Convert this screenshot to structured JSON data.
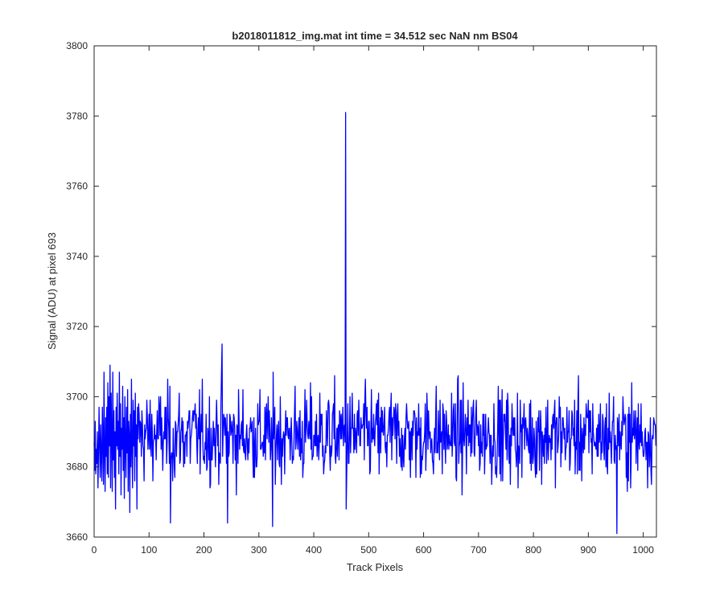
{
  "chart_data": {
    "type": "line",
    "title": "b2018011812_img.mat int time = 34.512 sec  NaN nm BS04",
    "xlabel": "Track Pixels",
    "ylabel": "Signal (ADU) at pixel 693",
    "xlim": [
      0,
      1024
    ],
    "ylim": [
      3660,
      3800
    ],
    "xticks": [
      0,
      100,
      200,
      300,
      400,
      500,
      600,
      700,
      800,
      900,
      1000
    ],
    "yticks": [
      3660,
      3680,
      3700,
      3720,
      3740,
      3760,
      3780,
      3800
    ],
    "grid": false,
    "box": true,
    "series_color": "#0000ff",
    "noise_model": {
      "x_start": 0,
      "x_end": 1023,
      "mean": 3689,
      "std": 9,
      "min_visible": 3661,
      "max_typical": 3715
    },
    "series": [
      {
        "points": [
          [
            0,
            3687
          ],
          [
            1,
            3679
          ],
          [
            2,
            3693
          ],
          [
            3,
            3678
          ],
          [
            4,
            3685
          ],
          [
            5,
            3681
          ],
          [
            6,
            3690
          ],
          [
            7,
            3674
          ],
          [
            8,
            3684
          ],
          [
            9,
            3697
          ],
          [
            10,
            3686
          ],
          [
            11,
            3677
          ],
          [
            12,
            3692
          ],
          [
            13,
            3683
          ],
          [
            14,
            3676
          ],
          [
            15,
            3697
          ],
          [
            16,
            3688
          ],
          [
            17,
            3675
          ],
          [
            18,
            3707
          ],
          [
            19,
            3684
          ],
          [
            20,
            3673
          ],
          [
            21,
            3694
          ],
          [
            22,
            3683
          ],
          [
            23,
            3697
          ],
          [
            24,
            3678
          ],
          [
            25,
            3704
          ],
          [
            26,
            3677
          ],
          [
            27,
            3700
          ],
          [
            28,
            3686
          ],
          [
            29,
            3709
          ],
          [
            30,
            3674
          ],
          [
            31,
            3701
          ],
          [
            32,
            3689
          ],
          [
            33,
            3673
          ],
          [
            34,
            3707
          ],
          [
            35,
            3682
          ],
          [
            36,
            3696
          ],
          [
            37,
            3677
          ],
          [
            38,
            3690
          ],
          [
            39,
            3668
          ],
          [
            40,
            3697
          ],
          [
            41,
            3686
          ],
          [
            42,
            3701
          ],
          [
            43,
            3685
          ],
          [
            44,
            3693
          ],
          [
            45,
            3678
          ],
          [
            46,
            3707
          ],
          [
            47,
            3683
          ],
          [
            48,
            3698
          ],
          [
            49,
            3672
          ],
          [
            50,
            3691
          ],
          [
            51,
            3685
          ],
          [
            52,
            3703
          ],
          [
            53,
            3679
          ],
          [
            54,
            3694
          ],
          [
            55,
            3671
          ],
          [
            56,
            3700
          ],
          [
            57,
            3686
          ],
          [
            58,
            3677
          ],
          [
            59,
            3697
          ],
          [
            60,
            3684
          ],
          [
            61,
            3702
          ],
          [
            62,
            3673
          ],
          [
            63,
            3693
          ],
          [
            64,
            3689
          ],
          [
            65,
            3667
          ],
          [
            66,
            3695
          ],
          [
            67,
            3680
          ],
          [
            68,
            3705
          ],
          [
            69,
            3685
          ],
          [
            70,
            3674
          ],
          [
            71,
            3699
          ],
          [
            72,
            3686
          ],
          [
            73,
            3696
          ],
          [
            74,
            3676
          ],
          [
            75,
            3701
          ],
          [
            76,
            3683
          ],
          [
            77,
            3692
          ],
          [
            78,
            3668
          ],
          [
            79,
            3697
          ],
          [
            80,
            3688
          ]
        ]
      }
    ],
    "spikes": [
      {
        "x": 233,
        "y": 3715
      },
      {
        "x": 458,
        "y": 3781
      },
      {
        "x": 459,
        "y": 3668
      },
      {
        "x": 952,
        "y": 3661
      },
      {
        "x": 325,
        "y": 3663
      },
      {
        "x": 243,
        "y": 3664
      },
      {
        "x": 139,
        "y": 3664
      }
    ]
  }
}
